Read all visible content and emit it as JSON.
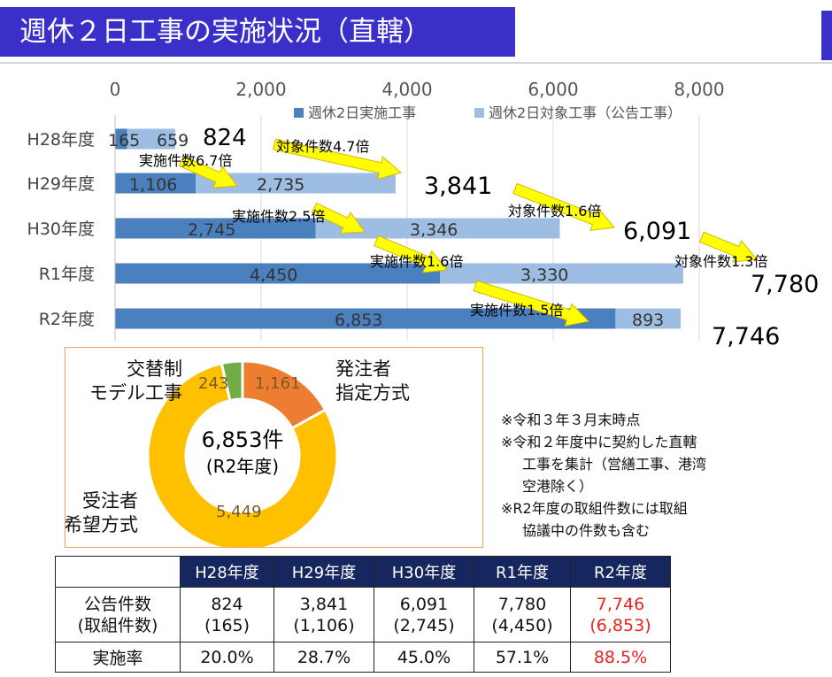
{
  "page": {
    "title": "週休２日工事の実施状況（直轄）",
    "colors": {
      "title_bg": "#3b2fc9",
      "implemented": "#4a80bd",
      "target": "#9dbde2",
      "arrow": "#ffff00",
      "table_header": "#16275f",
      "highlight": "#e8231b"
    }
  },
  "chart_data": [
    {
      "type": "bar",
      "orientation": "horizontal",
      "stacked": true,
      "categories": [
        "H28年度",
        "H29年度",
        "H30年度",
        "R1年度",
        "R2年度"
      ],
      "series": [
        {
          "name": "週休2日実施工事",
          "values": [
            165,
            1106,
            2745,
            4450,
            6853
          ],
          "labels": [
            "165",
            "1,106",
            "2,745",
            "4,450",
            "6,853"
          ]
        },
        {
          "name": "週休2日対象工事（公告工事）",
          "values": [
            659,
            2735,
            3346,
            3330,
            893
          ],
          "labels": [
            "659",
            "2,735",
            "3,346",
            "3,330",
            "893"
          ]
        }
      ],
      "xlim": [
        0,
        8000
      ],
      "xticks": [
        "0",
        "2,000",
        "4,000",
        "6,000",
        "8,000"
      ],
      "grid": true,
      "legend": "top-right",
      "totals": [
        "824",
        "3,841",
        "6,091",
        "7,780",
        "7,746"
      ],
      "annotations": {
        "implemented_growth": [
          "実施件数6.7倍",
          "実施件数2.5倍",
          "実施件数1.6倍",
          "実施件数1.5倍"
        ],
        "target_growth": [
          "対象件数4.7倍",
          "対象件数1.6倍",
          "対象件数1.3倍"
        ]
      }
    },
    {
      "type": "pie",
      "donut": true,
      "center_label": [
        "6,853件",
        "(R2年度)"
      ],
      "slices": [
        {
          "name": "発注者指定方式",
          "label_lines": [
            "発注者",
            "指定方式"
          ],
          "value": 1161,
          "value_label": "1,161",
          "color": "#ed7d31"
        },
        {
          "name": "受注者希望方式",
          "label_lines": [
            "受注者",
            "希望方式"
          ],
          "value": 5449,
          "value_label": "5,449",
          "color": "#ffc000"
        },
        {
          "name": "交替制モデル工事",
          "label_lines": [
            "交替制",
            "モデル工事"
          ],
          "value": 243,
          "value_label": "243",
          "color": "#70ad47"
        }
      ]
    }
  ],
  "notes": [
    "※令和３年３月末時点",
    "※令和２年度中に契約した直轄",
    "工事を集計（営繕工事、港湾",
    "空港除く）",
    "※R2年度の取組件数には取組",
    "協議中の件数も含む"
  ],
  "table": {
    "headers": [
      "H28年度",
      "H29年度",
      "H30年度",
      "R1年度",
      "R2年度"
    ],
    "rows": [
      {
        "label": [
          "公告件数",
          "(取組件数)"
        ],
        "cells": [
          [
            "824",
            "(165)"
          ],
          [
            "3,841",
            "(1,106)"
          ],
          [
            "6,091",
            "(2,745)"
          ],
          [
            "7,780",
            "(4,450)"
          ],
          [
            "7,746",
            "(6,853)"
          ]
        ]
      },
      {
        "label": [
          "実施率"
        ],
        "cells": [
          [
            "20.0%"
          ],
          [
            "28.7%"
          ],
          [
            "45.0%"
          ],
          [
            "57.1%"
          ],
          [
            "88.5%"
          ]
        ]
      }
    ]
  }
}
